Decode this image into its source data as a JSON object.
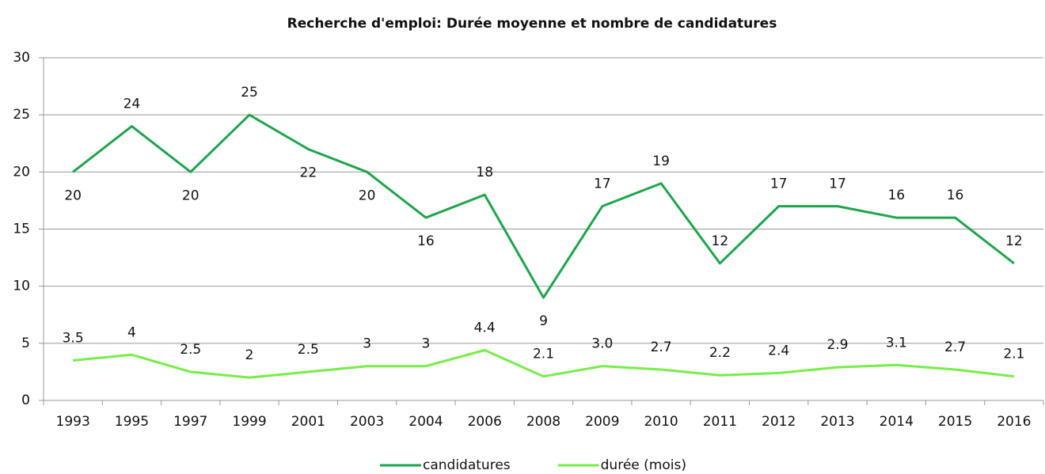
{
  "chart_data": {
    "type": "line",
    "title": "Recherche d'emploi: Durée moyenne et nombre de candidatures",
    "categories": [
      "1993",
      "1995",
      "1997",
      "1999",
      "2001",
      "2003",
      "2004",
      "2006",
      "2008",
      "2009",
      "2010",
      "2011",
      "2012",
      "2013",
      "2014",
      "2015",
      "2016"
    ],
    "series": [
      {
        "name": "candidatures",
        "color": "#1ea54c",
        "values": [
          20,
          24,
          20,
          25,
          22,
          20,
          16,
          18,
          9,
          17,
          19,
          12,
          17,
          17,
          16,
          16,
          12
        ]
      },
      {
        "name": "durée (mois)",
        "color": "#76ee48",
        "values": [
          3.5,
          4,
          2.5,
          2,
          2.5,
          3,
          3,
          4.4,
          2.1,
          3.0,
          2.7,
          2.2,
          2.4,
          2.9,
          3.1,
          2.7,
          2.1
        ],
        "value_labels": [
          "3.5",
          "4",
          "2.5",
          "2",
          "2.5",
          "3",
          "3",
          "4.4",
          "2.1",
          "3.0",
          "2.7",
          "2.2",
          "2.4",
          "2.9",
          "3.1",
          "2.7",
          "2.1"
        ]
      }
    ],
    "ylim": [
      0,
      30
    ],
    "yticks": [
      0,
      5,
      10,
      15,
      20,
      25,
      30
    ],
    "grid": true,
    "legend": "bottom"
  }
}
